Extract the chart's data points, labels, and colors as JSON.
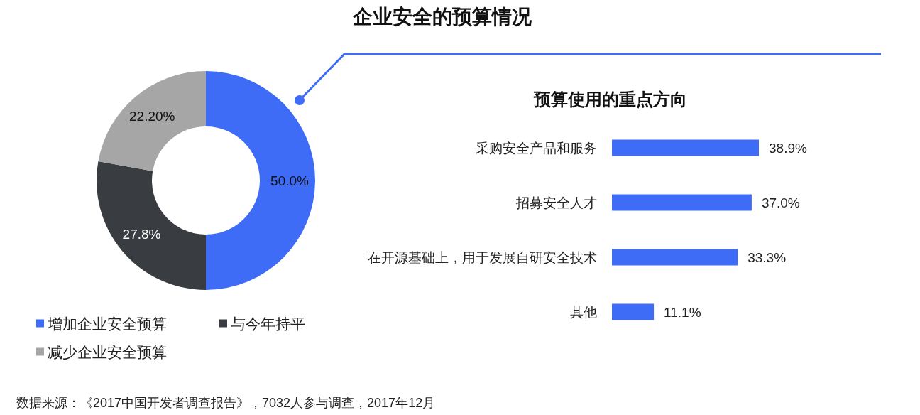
{
  "chart_data": [
    {
      "type": "donut",
      "title": "企业安全的预算情况",
      "categories": [
        "增加企业安全预算",
        "与今年持平",
        "减少企业安全预算"
      ],
      "values": [
        50.0,
        27.8,
        22.2
      ],
      "colors": [
        "#3f6cf6",
        "#393c40",
        "#a6a6a6"
      ],
      "value_labels": [
        "50.0%",
        "27.8%",
        "22.20%"
      ],
      "legend": "bottom left",
      "annotations": [
        "数据来源：《2017中国开发者调查报告》，7032人参与调查，2017年12月"
      ]
    },
    {
      "type": "bar",
      "orientation": "horizontal",
      "title": "预算使用的重点方向",
      "categories": [
        "采购安全产品和服务",
        "招募安全人才",
        "在开源基础上，用于发展自研安全技术",
        "其他"
      ],
      "values": [
        38.9,
        37.0,
        33.3,
        11.1
      ],
      "color": "#3f6cf6",
      "value_labels": [
        "38.9%",
        "37.0%",
        "33.3%",
        "11.1%"
      ]
    }
  ]
}
